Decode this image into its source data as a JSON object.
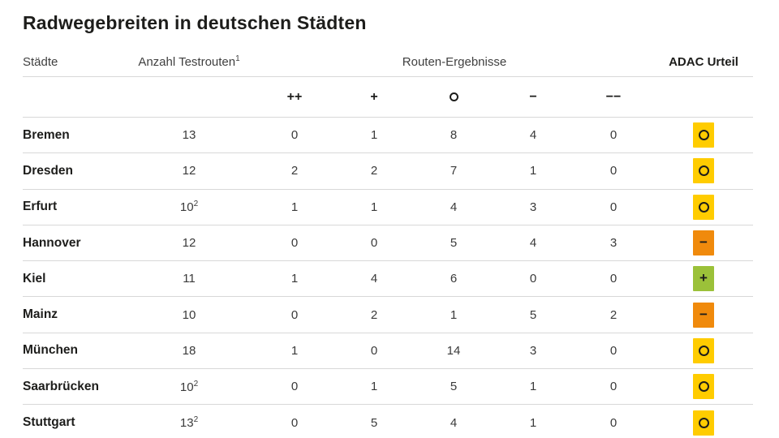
{
  "title": "Radwegebreiten in deutschen Städten",
  "table_headers": {
    "staedte": "Städte",
    "anzahl": "Anzahl Testrouten",
    "anzahl_sup": "1",
    "ergebnisse": "Routen-Ergebnisse",
    "urteil": "ADAC Urteil"
  },
  "chart_data": {
    "type": "table",
    "title": "Radwegebreiten in deutschen Städten",
    "columns": [
      "Städte",
      "Anzahl Testrouten¹",
      "++",
      "+",
      "○",
      "−",
      "−−",
      "ADAC Urteil"
    ],
    "symbol_headers": [
      "++",
      "+",
      "○",
      "−",
      "−−"
    ],
    "rating_colors": {
      "plus": "#9bc139",
      "neutral": "#ffcc00",
      "minus": "#f08a0c"
    },
    "rows": [
      {
        "city": "Bremen",
        "anzahl": "13",
        "anzahl_sup": "",
        "ratings": [
          "0",
          "1",
          "8",
          "4",
          "0"
        ],
        "urteil": "neutral"
      },
      {
        "city": "Dresden",
        "anzahl": "12",
        "anzahl_sup": "",
        "ratings": [
          "2",
          "2",
          "7",
          "1",
          "0"
        ],
        "urteil": "neutral"
      },
      {
        "city": "Erfurt",
        "anzahl": "10",
        "anzahl_sup": "2",
        "ratings": [
          "1",
          "1",
          "4",
          "3",
          "0"
        ],
        "urteil": "neutral"
      },
      {
        "city": "Hannover",
        "anzahl": "12",
        "anzahl_sup": "",
        "ratings": [
          "0",
          "0",
          "5",
          "4",
          "3"
        ],
        "urteil": "minus"
      },
      {
        "city": "Kiel",
        "anzahl": "11",
        "anzahl_sup": "",
        "ratings": [
          "1",
          "4",
          "6",
          "0",
          "0"
        ],
        "urteil": "plus"
      },
      {
        "city": "Mainz",
        "anzahl": "10",
        "anzahl_sup": "",
        "ratings": [
          "0",
          "2",
          "1",
          "5",
          "2"
        ],
        "urteil": "minus"
      },
      {
        "city": "München",
        "anzahl": "18",
        "anzahl_sup": "",
        "ratings": [
          "1",
          "0",
          "14",
          "3",
          "0"
        ],
        "urteil": "neutral"
      },
      {
        "city": "Saarbrücken",
        "anzahl": "10",
        "anzahl_sup": "2",
        "ratings": [
          "0",
          "1",
          "5",
          "1",
          "0"
        ],
        "urteil": "neutral"
      },
      {
        "city": "Stuttgart",
        "anzahl": "13",
        "anzahl_sup": "2",
        "ratings": [
          "0",
          "5",
          "4",
          "1",
          "0"
        ],
        "urteil": "neutral"
      }
    ],
    "urteil_glyphs": {
      "plus": "+",
      "neutral": "○",
      "minus": "−"
    }
  }
}
